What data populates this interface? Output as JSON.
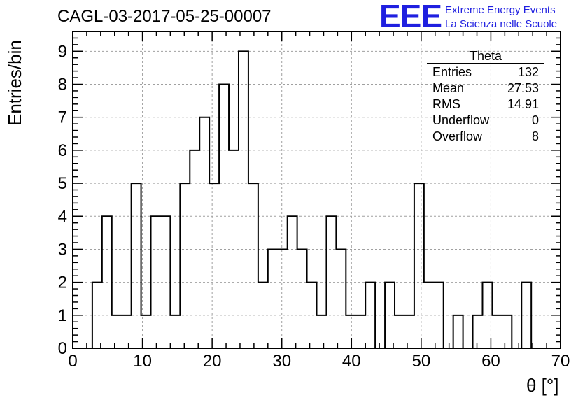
{
  "header": {
    "title": "CAGL-03-2017-05-25-00007",
    "logo": "EEE",
    "tagline_1": "Extreme Energy Events",
    "tagline_2": "La Scienza nelle Scuole"
  },
  "stats_box": {
    "name": "Theta",
    "rows": [
      {
        "label": "Entries",
        "value": "132"
      },
      {
        "label": "Mean",
        "value": "27.53"
      },
      {
        "label": "RMS",
        "value": "14.91"
      },
      {
        "label": "Underflow",
        "value": "0"
      },
      {
        "label": "Overflow",
        "value": "8"
      }
    ]
  },
  "chart_data": {
    "type": "bar",
    "style": "step histogram",
    "xlabel": "θ [°]",
    "ylabel": "Entries/bin",
    "xlim": [
      0,
      70
    ],
    "ylim": [
      0,
      9.6
    ],
    "x_ticks": [
      0,
      10,
      20,
      30,
      40,
      50,
      60,
      70
    ],
    "y_ticks": [
      0,
      1,
      2,
      3,
      4,
      5,
      6,
      7,
      8,
      9
    ],
    "grid": true,
    "bin_edges": [
      0,
      1.4,
      2.8,
      4.2,
      5.6,
      7.0,
      8.4,
      9.8,
      11.2,
      12.6,
      14.0,
      15.4,
      16.8,
      18.2,
      19.6,
      21.0,
      22.4,
      23.8,
      25.2,
      26.6,
      28.0,
      29.4,
      30.8,
      32.2,
      33.6,
      35.0,
      36.4,
      37.8,
      39.2,
      40.6,
      42.0,
      43.4,
      44.8,
      46.2,
      47.6,
      49.0,
      50.4,
      51.8,
      53.2,
      54.6,
      56.0,
      57.4,
      58.8,
      60.2,
      61.6,
      63.0,
      64.4,
      65.8,
      67.2,
      68.6,
      70.0
    ],
    "values": [
      0,
      0,
      2,
      4,
      1,
      1,
      5,
      1,
      4,
      4,
      1,
      5,
      6,
      7,
      5,
      8,
      6,
      9,
      5,
      2,
      3,
      3,
      4,
      3,
      2,
      1,
      4,
      3,
      1,
      1,
      2,
      0,
      2,
      1,
      1,
      5,
      2,
      2,
      0,
      1,
      0,
      1,
      2,
      1,
      1,
      0,
      2,
      0,
      0,
      0
    ],
    "line_color": "#000000"
  }
}
